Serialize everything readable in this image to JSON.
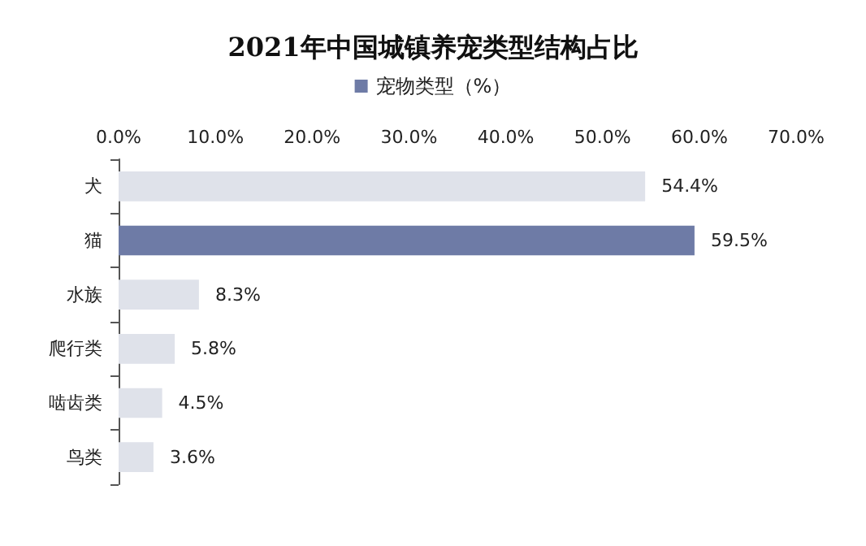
{
  "chart_data": {
    "type": "bar",
    "orientation": "horizontal",
    "title": "2021年中国城镇养宠类型结构占比",
    "categories": [
      "犬",
      "猫",
      "水族",
      "爬行类",
      "啮齿类",
      "鸟类"
    ],
    "series": [
      {
        "name": "宠物类型（%）",
        "color": "#6e7ba6",
        "colors": [
          "#dfe2ea",
          "#6e7ba6",
          "#dfe2ea",
          "#dfe2ea",
          "#dfe2ea",
          "#dfe2ea"
        ],
        "values": [
          54.4,
          59.5,
          8.3,
          5.8,
          4.5,
          3.6
        ],
        "value_labels": [
          "54.4%",
          "59.5%",
          "8.3%",
          "5.8%",
          "4.5%",
          "3.6%"
        ]
      }
    ],
    "xlim": [
      0,
      70
    ],
    "xticks": [
      {
        "value": 0,
        "label": "0.0%"
      },
      {
        "value": 10,
        "label": "10.0%"
      },
      {
        "value": 20,
        "label": "20.0%"
      },
      {
        "value": 30,
        "label": "30.0%"
      },
      {
        "value": 40,
        "label": "40.0%"
      },
      {
        "value": 50,
        "label": "50.0%"
      },
      {
        "value": 60,
        "label": "60.0%"
      },
      {
        "value": 70,
        "label": "70.0%"
      }
    ],
    "legend": "top",
    "grid": false
  }
}
